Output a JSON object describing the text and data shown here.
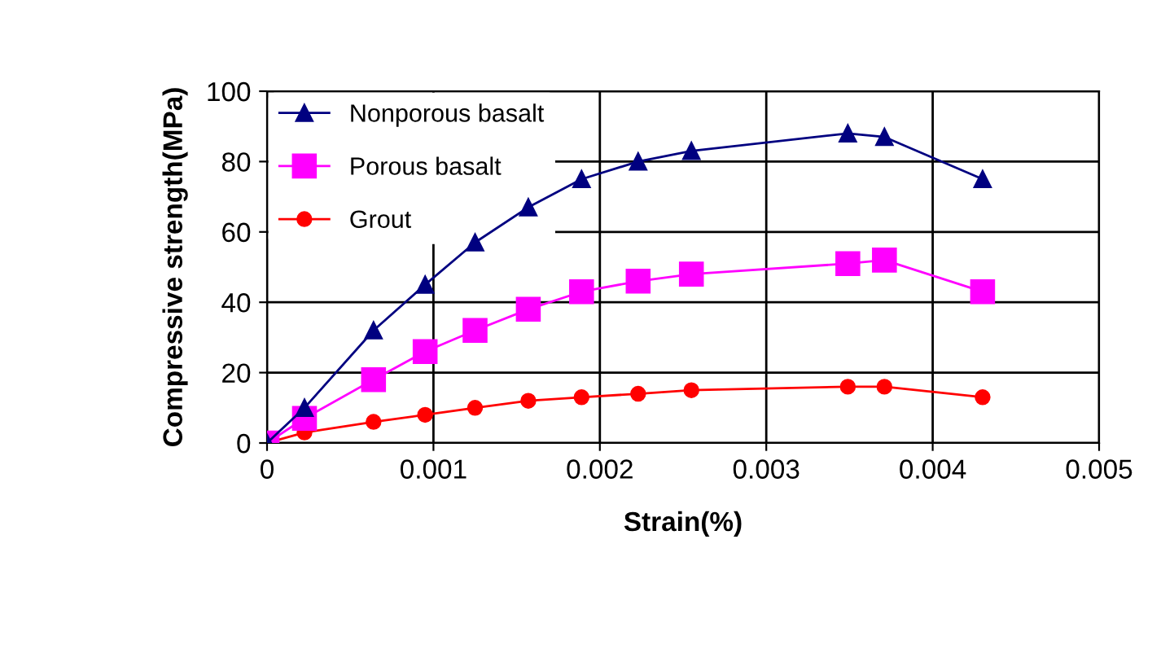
{
  "chart_data": {
    "type": "line",
    "xlabel": "Strain(%)",
    "ylabel": "Compressive strength(MPa)",
    "x": [
      0,
      0.000225,
      0.00064,
      0.00095,
      0.00125,
      0.00157,
      0.00189,
      0.00223,
      0.00255,
      0.00349,
      0.00371,
      0.0043
    ],
    "series": [
      {
        "name": "Nonporous basalt",
        "color": "#000080",
        "marker": "triangle",
        "values": [
          0,
          10,
          32,
          45,
          57,
          67,
          75,
          80,
          83,
          88,
          87,
          75
        ]
      },
      {
        "name": "Porous basalt",
        "color": "#ff00ff",
        "marker": "square",
        "values": [
          0,
          7,
          18,
          26,
          32,
          38,
          43,
          46,
          48,
          51,
          52,
          43
        ]
      },
      {
        "name": "Grout",
        "color": "#ff0000",
        "marker": "circle",
        "values": [
          0,
          3,
          6,
          8,
          10,
          12,
          13,
          14,
          15,
          16,
          16,
          13
        ]
      }
    ],
    "xlim": [
      0,
      0.005
    ],
    "xticks": [
      0,
      0.001,
      0.002,
      0.003,
      0.004,
      0.005
    ],
    "ylim": [
      0,
      100
    ],
    "yticks": [
      0,
      20,
      40,
      60,
      80,
      100
    ],
    "grid": true,
    "legend": "top left"
  }
}
